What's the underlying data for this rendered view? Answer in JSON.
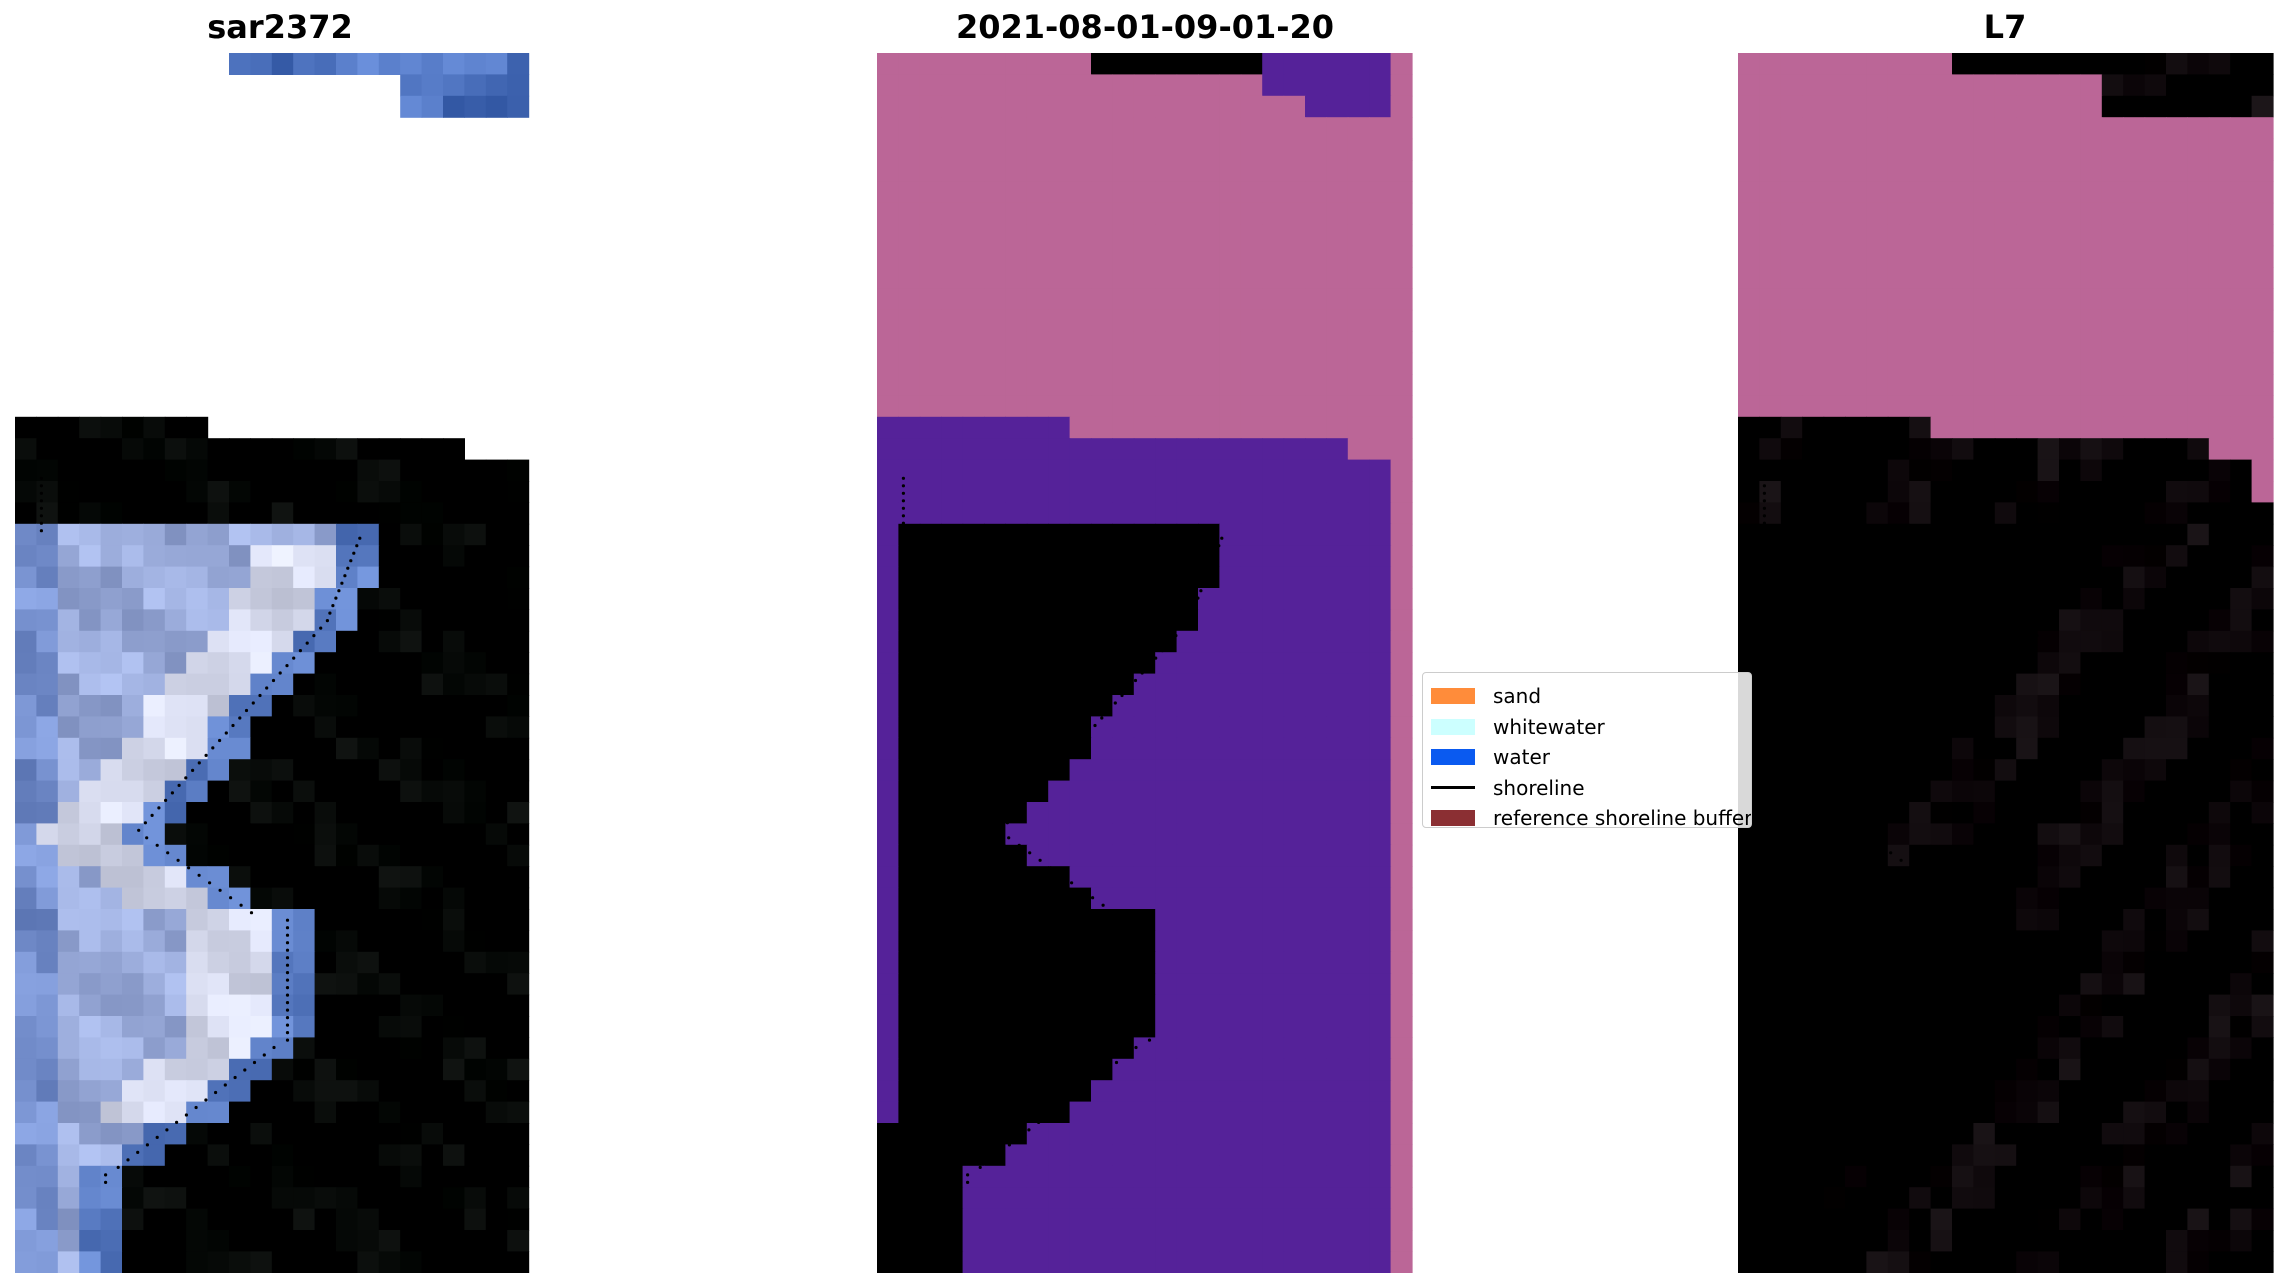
{
  "panels": [
    {
      "title": "sar2372",
      "image": "rgb-composite"
    },
    {
      "title": "2021-08-01-09-01-20",
      "image": "classification"
    },
    {
      "title": "L7",
      "image": "mndwi"
    }
  ],
  "legend": {
    "items": [
      {
        "label": "sand",
        "color": "#ff8c3a",
        "kind": "patch"
      },
      {
        "label": "whitewater",
        "color": "#ccffff",
        "kind": "patch"
      },
      {
        "label": "water",
        "color": "#0a5af0",
        "kind": "patch"
      },
      {
        "label": "shoreline",
        "color": "#000000",
        "kind": "line"
      },
      {
        "label": "reference shoreline buffer",
        "color": "#8b2f33",
        "kind": "patch"
      }
    ]
  },
  "colors": {
    "rgb_water": "#3f6cc4",
    "rgb_beach": "#b8c4ec",
    "rgb_white": "#f4f4ff",
    "class_background": "#bb6697",
    "class_water": "#552299",
    "class_beach": "#a8508e",
    "class_buffer": "#c2384c",
    "mndwi_background": "#bb6697",
    "mndwi_land": "#cc1144",
    "mndwi_water": "#9a3ea6",
    "shoreline_dots": "#000000"
  }
}
